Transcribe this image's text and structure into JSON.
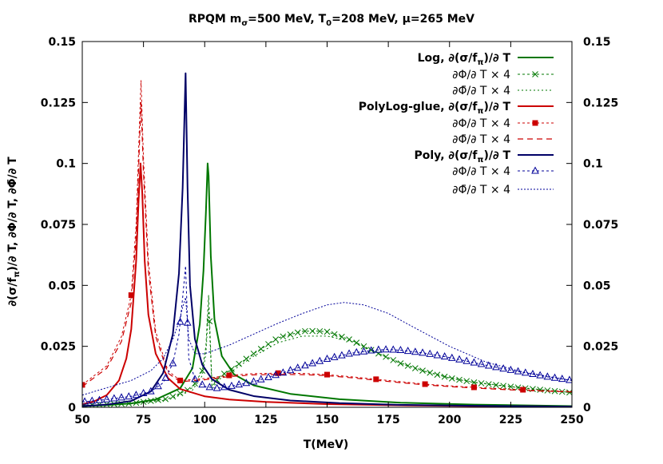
{
  "chart_data": {
    "type": "line",
    "title": "RPQM  mσ=500 MeV, T0=208 MeV, μ=265 MeV",
    "title_parts": {
      "prefix": "RPQM  m",
      "sub1": "σ",
      "mid1": "=500 MeV, T",
      "sub2": "0",
      "mid2": "=208 MeV, ",
      "mu": "μ",
      "suffix": "=265 MeV"
    },
    "xlabel": "T(MeV)",
    "ylabel": "∂(σ/fπ)/∂ T, ∂Φ/∂ T, ∂Φ̄/∂ T",
    "ylabel_parts": {
      "a": "∂(σ/f",
      "a_sub": "π",
      "b": ")/∂ T, ∂Φ/∂ T, ∂Φ̄/∂ T"
    },
    "xlim": [
      50,
      250
    ],
    "ylim": [
      0,
      0.15
    ],
    "xticks": [
      "50",
      "75",
      "100",
      "125",
      "150",
      "175",
      "200",
      "225",
      "250"
    ],
    "xtick_values": [
      50,
      75,
      100,
      125,
      150,
      175,
      200,
      225,
      250
    ],
    "yticks": [
      "0",
      "0.025",
      "0.05",
      "0.075",
      "0.1",
      "0.125",
      "0.15"
    ],
    "ytick_values": [
      0,
      0.025,
      0.05,
      0.075,
      0.1,
      0.125,
      0.15
    ],
    "grid": false,
    "legend_position": "top-right",
    "series": [
      {
        "legend": "Log, ∂(σ/fπ)/∂ T",
        "legend_main": "Log, ∂(σ/f",
        "legend_sub": "π",
        "legend_tail": ")/∂ T",
        "bold": true,
        "color": "#007700",
        "dash": "none",
        "width": 2,
        "marker": "none",
        "x": [
          50,
          60,
          70,
          80,
          90,
          95,
          98,
          99.5,
          100.5,
          101.2,
          101.6,
          102.5,
          104,
          107,
          112,
          120,
          135,
          155,
          180,
          210,
          250
        ],
        "y": [
          0.0005,
          0.0009,
          0.0016,
          0.0032,
          0.0078,
          0.016,
          0.034,
          0.056,
          0.08,
          0.1,
          0.095,
          0.062,
          0.036,
          0.021,
          0.0135,
          0.009,
          0.0055,
          0.0033,
          0.0019,
          0.0011,
          0.0005
        ]
      },
      {
        "legend": "∂Φ/∂ T × 4",
        "legend_main": "∂Φ/∂ T × 4",
        "bold": false,
        "color": "#007700",
        "dash": "3,3",
        "width": 1,
        "marker": "x",
        "x": [
          50,
          70,
          85,
          95,
          99,
          100.5,
          101.6,
          103,
          106,
          110,
          120,
          130,
          140,
          145,
          150,
          160,
          170,
          180,
          190,
          200,
          210,
          220,
          230,
          240,
          250
        ],
        "y": [
          0.0008,
          0.0016,
          0.0035,
          0.008,
          0.015,
          0.025,
          0.046,
          0.0085,
          0.0125,
          0.015,
          0.022,
          0.0285,
          0.0312,
          0.0313,
          0.031,
          0.0275,
          0.0225,
          0.018,
          0.0147,
          0.012,
          0.0102,
          0.009,
          0.0079,
          0.0069,
          0.006
        ]
      },
      {
        "legend": "∂Φ̄/∂ T × 4",
        "legend_main": "∂Φ̄/∂ T × 4",
        "bold": false,
        "color": "#007700",
        "dash": "2,3",
        "width": 1,
        "marker": "none",
        "x": [
          50,
          70,
          85,
          95,
          99,
          100.5,
          101.6,
          103,
          106,
          110,
          120,
          130,
          140,
          150,
          160,
          170,
          180,
          190,
          200,
          210,
          220,
          230,
          240,
          250
        ],
        "y": [
          0.0007,
          0.0014,
          0.003,
          0.007,
          0.013,
          0.022,
          0.041,
          0.0078,
          0.0115,
          0.014,
          0.021,
          0.0265,
          0.0292,
          0.0292,
          0.027,
          0.0225,
          0.0182,
          0.0148,
          0.0122,
          0.0103,
          0.0091,
          0.008,
          0.007,
          0.006
        ]
      },
      {
        "legend": "PolyLog-glue, ∂(σ/fπ)/∂ T",
        "legend_main": "PolyLog-glue, ∂(σ/f",
        "legend_sub": "π",
        "legend_tail": ")/∂ T",
        "bold": true,
        "color": "#cc0000",
        "dash": "none",
        "width": 2,
        "marker": "none",
        "x": [
          50,
          55,
          60,
          65,
          68,
          70,
          72,
          73,
          73.8,
          74.5,
          75.5,
          77,
          80,
          85,
          90,
          100,
          110,
          125,
          150,
          180,
          210,
          250
        ],
        "y": [
          0.0012,
          0.0025,
          0.005,
          0.011,
          0.02,
          0.032,
          0.06,
          0.085,
          0.1,
          0.088,
          0.06,
          0.038,
          0.022,
          0.012,
          0.0075,
          0.0045,
          0.0032,
          0.0022,
          0.0013,
          0.0008,
          0.0005,
          0.0003
        ]
      },
      {
        "legend": "∂Φ/∂ T × 4",
        "legend_main": "∂Φ/∂ T × 4",
        "bold": false,
        "color": "#cc0000",
        "dash": "3,3",
        "width": 1,
        "marker": "square",
        "x": [
          50,
          60,
          66,
          70,
          72,
          73.5,
          74,
          75,
          77,
          80,
          85,
          90,
          100,
          110,
          120,
          130,
          140,
          150,
          160,
          170,
          180,
          190,
          200,
          210,
          220,
          230,
          240,
          250
        ],
        "y": [
          0.0092,
          0.017,
          0.029,
          0.046,
          0.075,
          0.12,
          0.134,
          0.102,
          0.06,
          0.031,
          0.015,
          0.011,
          0.0118,
          0.0131,
          0.0138,
          0.014,
          0.0139,
          0.0134,
          0.0125,
          0.0115,
          0.0105,
          0.0095,
          0.0088,
          0.0082,
          0.0077,
          0.0072,
          0.0068,
          0.0065
        ]
      },
      {
        "legend": "∂Φ̄/∂ T × 4",
        "legend_main": "∂Φ̄/∂ T × 4",
        "bold": false,
        "color": "#cc0000",
        "dash": "7,5",
        "width": 1.2,
        "marker": "none",
        "x": [
          50,
          60,
          66,
          70,
          72,
          73.5,
          74,
          75,
          77,
          80,
          85,
          90,
          100,
          110,
          120,
          130,
          140,
          150,
          160,
          170,
          180,
          190,
          200,
          210,
          220,
          230,
          240,
          250
        ],
        "y": [
          0.0085,
          0.016,
          0.027,
          0.043,
          0.07,
          0.112,
          0.125,
          0.096,
          0.056,
          0.029,
          0.014,
          0.0105,
          0.0113,
          0.0126,
          0.0133,
          0.0135,
          0.0134,
          0.013,
          0.0121,
          0.0111,
          0.0101,
          0.0092,
          0.0085,
          0.0079,
          0.0074,
          0.0069,
          0.0066,
          0.0063
        ]
      },
      {
        "legend": "Poly, ∂(σ/fπ)/∂ T",
        "legend_main": "Poly, ∂(σ/f",
        "legend_sub": "π",
        "legend_tail": ")/∂ T",
        "bold": true,
        "color": "#000066",
        "dash": "none",
        "width": 2,
        "marker": "none",
        "x": [
          50,
          60,
          70,
          78,
          83,
          87,
          89.5,
          91,
          92.2,
          93,
          94,
          96,
          99,
          103,
          110,
          120,
          135,
          155,
          180,
          210,
          250
        ],
        "y": [
          0.0005,
          0.0011,
          0.0026,
          0.0065,
          0.014,
          0.03,
          0.055,
          0.09,
          0.137,
          0.09,
          0.05,
          0.028,
          0.0175,
          0.0115,
          0.0072,
          0.0046,
          0.0028,
          0.0017,
          0.001,
          0.0006,
          0.0003
        ]
      },
      {
        "legend": "∂Φ/∂ T × 4",
        "legend_main": "∂Φ/∂ T × 4",
        "bold": false,
        "color": "#000099",
        "dash": "3,3",
        "width": 1,
        "marker": "triangle",
        "x": [
          50,
          60,
          70,
          78,
          83,
          87,
          89.5,
          91,
          92.2,
          93.5,
          96,
          100,
          105,
          110,
          120,
          130,
          140,
          150,
          160,
          170,
          175,
          180,
          190,
          200,
          210,
          220,
          230,
          240,
          250
        ],
        "y": [
          0.0022,
          0.0032,
          0.0045,
          0.0065,
          0.01,
          0.018,
          0.03,
          0.045,
          0.058,
          0.02,
          0.0115,
          0.0085,
          0.0078,
          0.0085,
          0.0105,
          0.0135,
          0.0168,
          0.0198,
          0.0222,
          0.0235,
          0.0237,
          0.0234,
          0.0222,
          0.0204,
          0.0183,
          0.0162,
          0.0143,
          0.0125,
          0.011
        ]
      },
      {
        "legend": "∂Φ̄/∂ T × 4",
        "legend_main": "∂Φ̄/∂ T × 4",
        "bold": false,
        "color": "#000099",
        "dash": "2,2",
        "width": 1,
        "marker": "none",
        "x": [
          50,
          60,
          70,
          78,
          83,
          87,
          89.5,
          91,
          92.2,
          93.5,
          96,
          100,
          110,
          120,
          130,
          140,
          150,
          157,
          165,
          175,
          185,
          200,
          215,
          230,
          250
        ],
        "y": [
          0.005,
          0.008,
          0.011,
          0.015,
          0.02,
          0.028,
          0.035,
          0.041,
          0.045,
          0.028,
          0.022,
          0.022,
          0.0255,
          0.03,
          0.0345,
          0.0385,
          0.042,
          0.043,
          0.042,
          0.0385,
          0.033,
          0.025,
          0.0185,
          0.0145,
          0.011
        ]
      }
    ]
  }
}
